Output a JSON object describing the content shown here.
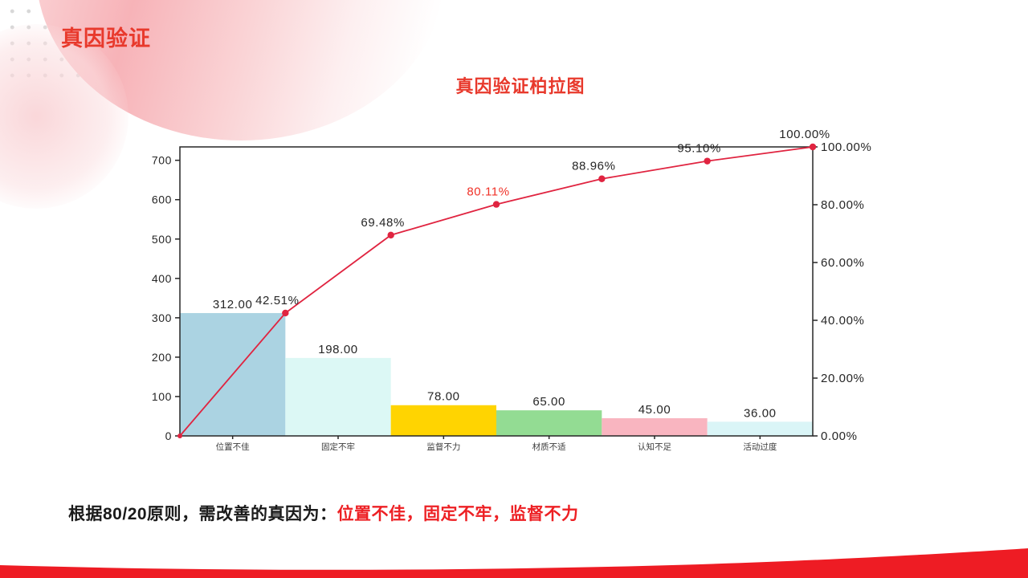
{
  "colors": {
    "accent_red": "#ee1c24",
    "title_red": "#e8392c",
    "footer_highlight_red": "#ed2024",
    "line_red": "#e02440",
    "axis_dark": "#262626",
    "category_label": "#3d3d3d"
  },
  "slide": {
    "title": "真因验证",
    "footer": {
      "prefix": "根据80/20原则，需改善的真因为：",
      "highlight": "位置不佳，固定不牢，监督不力"
    }
  },
  "chart_data": {
    "type": "pareto (bar + cumulative line)",
    "title": "真因验证柏拉图",
    "categories": [
      "位置不佳",
      "固定不牢",
      "监督不力",
      "材质不适",
      "认知不足",
      "活动过度"
    ],
    "series": [
      {
        "type": "bar",
        "values": [
          312,
          198,
          78,
          65,
          45,
          36
        ],
        "data_labels": [
          "312.00",
          "198.00",
          "78.00",
          "65.00",
          "45.00",
          "36.00"
        ],
        "bar_colors": [
          "#abd3e2",
          "#dcf8f5",
          "#ffd401",
          "#93dc93",
          "#f9b5c0",
          "#daf5f7"
        ]
      },
      {
        "type": "line",
        "values": [
          42.51,
          69.48,
          80.11,
          88.96,
          95.1,
          100.0
        ],
        "data_labels": [
          "42.51%",
          "69.48%",
          "80.11%",
          "88.96%",
          "95.10%",
          "100.00%"
        ],
        "label_colors": [
          "#262626",
          "#262626",
          "#f03228",
          "#262626",
          "#262626",
          "#262626"
        ],
        "line_color": "#e02440",
        "starts_at_origin": true
      }
    ],
    "left_axis": {
      "min": 0,
      "max": 734,
      "tick_values": [
        0,
        100,
        200,
        300,
        400,
        500,
        600,
        700
      ],
      "tick_labels": [
        "0",
        "100",
        "200",
        "300",
        "400",
        "500",
        "600",
        "700"
      ]
    },
    "right_axis": {
      "min": 0,
      "max": 100,
      "tick_values": [
        0,
        20,
        40,
        60,
        80,
        100
      ],
      "tick_labels": [
        "0.00%",
        "20.00%",
        "40.00%",
        "60.00%",
        "80.00%",
        "100.00%"
      ]
    },
    "grid": false,
    "legend": "none"
  }
}
